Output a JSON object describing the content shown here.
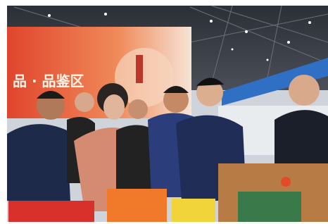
{
  "scene": {
    "banner_text": "品 · 品鉴区"
  }
}
